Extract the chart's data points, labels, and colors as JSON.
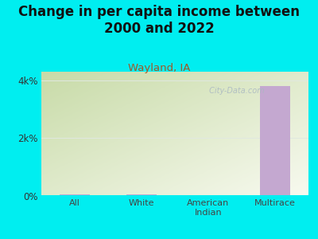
{
  "title": "Change in per capita income between\n2000 and 2022",
  "subtitle": "Wayland, IA",
  "categories": [
    "All",
    "White",
    "American\nIndian",
    "Multirace"
  ],
  "values": [
    55,
    65,
    25,
    3800
  ],
  "bar_color": "#c4a8d0",
  "background_color": "#00eef0",
  "plot_bg_gradient_top_left": "#c8dba8",
  "plot_bg_gradient_bottom_right": "#f8faf0",
  "yticks": [
    0,
    2000,
    4000
  ],
  "ytick_labels": [
    "0%",
    "2k%",
    "4k%"
  ],
  "ylim": [
    0,
    4300
  ],
  "title_fontsize": 12,
  "subtitle_fontsize": 9.5,
  "subtitle_color": "#a05828",
  "tick_label_fontsize": 8.5,
  "xtick_label_fontsize": 8,
  "watermark": " City-Data.com",
  "watermark_color": "#aab8c2",
  "grid_color": "#e0e8e0"
}
